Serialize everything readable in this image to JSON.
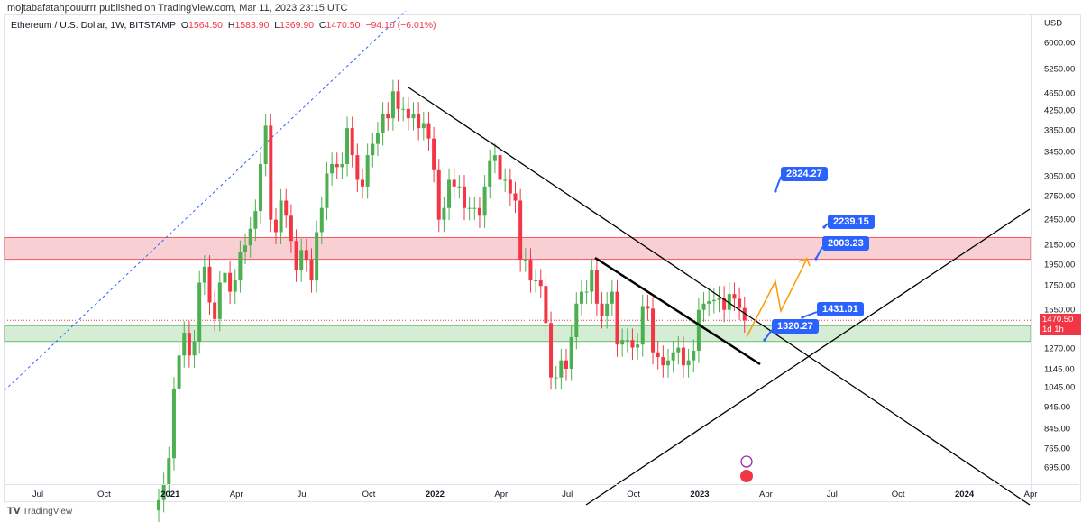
{
  "header": {
    "published": "mojtabafatahpouurrr published on TradingView.com, Mar 11, 2023 23:15 UTC"
  },
  "legend": {
    "symbol": "Ethereum / U.S. Dollar, 1W, BITSTAMP",
    "o_label": "O",
    "o": "1564.50",
    "h_label": "H",
    "h": "1583.90",
    "l_label": "L",
    "l": "1369.90",
    "c_label": "C",
    "c": "1470.50",
    "change": "−94.10 (−6.01%)"
  },
  "price_axis": {
    "currency": "USD",
    "ticks": [
      "6000.00",
      "5250.00",
      "4650.00",
      "4250.00",
      "3850.00",
      "3450.00",
      "3050.00",
      "2750.00",
      "2450.00",
      "2150.00",
      "1950.00",
      "1750.00",
      "1550.00",
      "1270.00",
      "1145.00",
      "1045.00",
      "945.00",
      "845.00",
      "765.00",
      "695.00"
    ],
    "last_price": "1470.50",
    "countdown": "1d 1h"
  },
  "time_axis": {
    "ticks": [
      {
        "t": "Jul",
        "b": false
      },
      {
        "t": "Oct",
        "b": false
      },
      {
        "t": "2021",
        "b": true
      },
      {
        "t": "Apr",
        "b": false
      },
      {
        "t": "Jul",
        "b": false
      },
      {
        "t": "Oct",
        "b": false
      },
      {
        "t": "2022",
        "b": true
      },
      {
        "t": "Apr",
        "b": false
      },
      {
        "t": "Jul",
        "b": false
      },
      {
        "t": "Oct",
        "b": false
      },
      {
        "t": "2023",
        "b": true
      },
      {
        "t": "Apr",
        "b": false
      },
      {
        "t": "Jul",
        "b": false
      },
      {
        "t": "Oct",
        "b": false
      },
      {
        "t": "2024",
        "b": true
      },
      {
        "t": "Apr",
        "b": false
      }
    ]
  },
  "labels": [
    "2824.27",
    "2239.15",
    "2003.23",
    "1431.01",
    "1320.27"
  ],
  "footer": {
    "brand": "TradingView"
  },
  "colors": {
    "up": "#4caf50",
    "down": "#f23645",
    "resistance_zone": "#f8d0d3",
    "support_zone": "#d5ecd5",
    "label": "#2962ff",
    "projection": "#ff9800"
  },
  "chart_data": {
    "type": "candlestick",
    "title": "Ethereum / U.S. Dollar, 1W, BITSTAMP",
    "scale": "log",
    "ylim": [
      650,
      6600
    ],
    "first_week": "2020-12-14",
    "closes": [
      590,
      640,
      730,
      1040,
      1230,
      1380,
      1230,
      1320,
      1780,
      1930,
      1610,
      1480,
      1780,
      1870,
      1700,
      1800,
      2080,
      2150,
      2340,
      2560,
      3250,
      3950,
      2450,
      2300,
      2700,
      2500,
      2200,
      1900,
      2100,
      2000,
      1800,
      2300,
      2600,
      3100,
      3250,
      3200,
      3250,
      3900,
      3400,
      3000,
      2900,
      3400,
      3600,
      3800,
      4200,
      4100,
      4700,
      4300,
      4300,
      4100,
      4200,
      3900,
      4000,
      3700,
      3150,
      2450,
      2600,
      3000,
      2900,
      2900,
      2600,
      2600,
      2600,
      2500,
      2900,
      3300,
      3400,
      3000,
      3000,
      2800,
      2700,
      2000,
      2000,
      1800,
      1800,
      1750,
      1450,
      1100,
      1100,
      1200,
      1150,
      1350,
      1600,
      1700,
      1700,
      1900,
      1600,
      1500,
      1600,
      1700,
      1300,
      1330,
      1330,
      1280,
      1300,
      1580,
      1560,
      1250,
      1220,
      1170,
      1200,
      1250,
      1280,
      1170,
      1200,
      1260,
      1550,
      1600,
      1620,
      1630,
      1650,
      1550,
      1680,
      1640,
      1565,
      1470
    ],
    "first_open": 560,
    "zones": [
      {
        "name": "resistance",
        "from": 2003.23,
        "to": 2239.15
      },
      {
        "name": "support",
        "from": 1320.27,
        "to": 1431.01
      }
    ]
  }
}
